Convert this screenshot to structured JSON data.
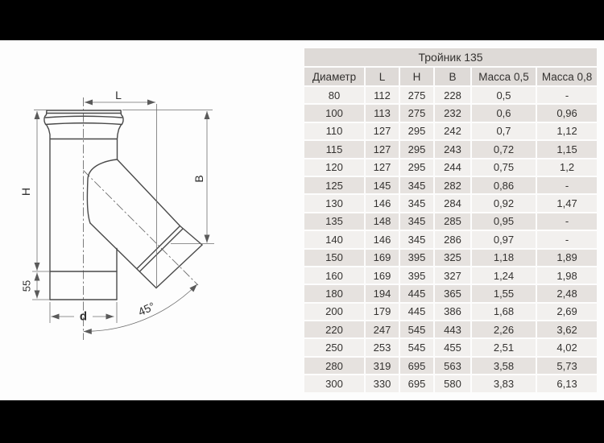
{
  "theme": {
    "black-band": "#000000",
    "canvas-bg": "#fdfdfd",
    "line-color": "#4a4a4a",
    "thin-line-color": "#6e6e6e",
    "label-color": "#2f2f2f",
    "table-header-bg": "#dedad7",
    "row-light": "#f2f0ee",
    "row-dark": "#e6e2df",
    "table-text": "#343230"
  },
  "drawing": {
    "labels": {
      "length": "L",
      "height": "H",
      "branch_drop": "B",
      "tail": "55",
      "diameter": "d",
      "angle": "45°"
    }
  },
  "table": {
    "title": "Тройник 135",
    "columns": [
      "Диаметр",
      "L",
      "H",
      "B",
      "Масса 0,5",
      "Масса 0,8"
    ],
    "rows": [
      [
        "80",
        "112",
        "275",
        "228",
        "0,5",
        "-"
      ],
      [
        "100",
        "113",
        "275",
        "232",
        "0,6",
        "0,96"
      ],
      [
        "110",
        "127",
        "295",
        "242",
        "0,7",
        "1,12"
      ],
      [
        "115",
        "127",
        "295",
        "243",
        "0,72",
        "1,15"
      ],
      [
        "120",
        "127",
        "295",
        "244",
        "0,75",
        "1,2"
      ],
      [
        "125",
        "145",
        "345",
        "282",
        "0,86",
        "-"
      ],
      [
        "130",
        "146",
        "345",
        "284",
        "0,92",
        "1,47"
      ],
      [
        "135",
        "148",
        "345",
        "285",
        "0,95",
        "-"
      ],
      [
        "140",
        "146",
        "345",
        "286",
        "0,97",
        "-"
      ],
      [
        "150",
        "169",
        "395",
        "325",
        "1,18",
        "1,89"
      ],
      [
        "160",
        "169",
        "395",
        "327",
        "1,24",
        "1,98"
      ],
      [
        "180",
        "194",
        "445",
        "365",
        "1,55",
        "2,48"
      ],
      [
        "200",
        "179",
        "445",
        "386",
        "1,68",
        "2,69"
      ],
      [
        "220",
        "247",
        "545",
        "443",
        "2,26",
        "3,62"
      ],
      [
        "250",
        "253",
        "545",
        "455",
        "2,51",
        "4,02"
      ],
      [
        "280",
        "319",
        "695",
        "563",
        "3,58",
        "5,73"
      ],
      [
        "300",
        "330",
        "695",
        "580",
        "3,83",
        "6,13"
      ]
    ]
  }
}
